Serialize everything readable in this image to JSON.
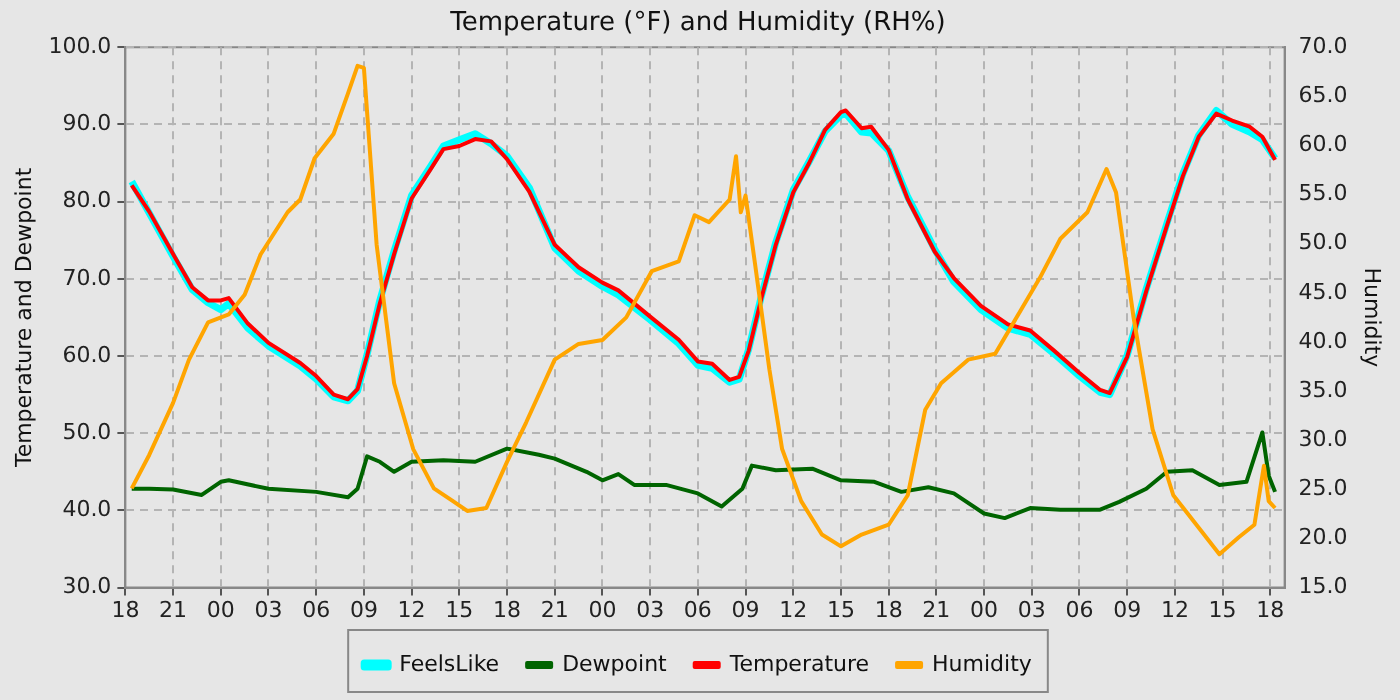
{
  "chart_data": {
    "type": "line",
    "title": "Temperature (°F) and Humidity (RH%)",
    "ylabel": "Temperature and Dewpoint",
    "y2label": "Humidity",
    "xlim": [
      18,
      90.9
    ],
    "xticks": [
      {
        "value": 18,
        "label": "18"
      },
      {
        "value": 21,
        "label": "21"
      },
      {
        "value": 24,
        "label": "00"
      },
      {
        "value": 27,
        "label": "03"
      },
      {
        "value": 30,
        "label": "06"
      },
      {
        "value": 33,
        "label": "09"
      },
      {
        "value": 36,
        "label": "12"
      },
      {
        "value": 39,
        "label": "15"
      },
      {
        "value": 42,
        "label": "18"
      },
      {
        "value": 45,
        "label": "21"
      },
      {
        "value": 48,
        "label": "00"
      },
      {
        "value": 51,
        "label": "03"
      },
      {
        "value": 54,
        "label": "06"
      },
      {
        "value": 57,
        "label": "09"
      },
      {
        "value": 60,
        "label": "12"
      },
      {
        "value": 63,
        "label": "15"
      },
      {
        "value": 66,
        "label": "18"
      },
      {
        "value": 69,
        "label": "21"
      },
      {
        "value": 72,
        "label": "00"
      },
      {
        "value": 75,
        "label": "03"
      },
      {
        "value": 78,
        "label": "06"
      },
      {
        "value": 81,
        "label": "09"
      },
      {
        "value": 84,
        "label": "12"
      },
      {
        "value": 87,
        "label": "15"
      },
      {
        "value": 90,
        "label": "18"
      }
    ],
    "ylim": [
      30,
      100
    ],
    "yticks": [
      {
        "value": 30,
        "label": "30.0"
      },
      {
        "value": 40,
        "label": "40.0"
      },
      {
        "value": 50,
        "label": "50.0"
      },
      {
        "value": 60,
        "label": "60.0"
      },
      {
        "value": 70,
        "label": "70.0"
      },
      {
        "value": 80,
        "label": "80.0"
      },
      {
        "value": 90,
        "label": "90.0"
      },
      {
        "value": 100,
        "label": "100.0"
      }
    ],
    "y2lim": [
      15,
      70
    ],
    "y2ticks": [
      {
        "value": 15,
        "label": "15.0"
      },
      {
        "value": 20,
        "label": "20.0"
      },
      {
        "value": 25,
        "label": "25.0"
      },
      {
        "value": 30,
        "label": "30.0"
      },
      {
        "value": 35,
        "label": "35.0"
      },
      {
        "value": 40,
        "label": "40.0"
      },
      {
        "value": 45,
        "label": "45.0"
      },
      {
        "value": 50,
        "label": "50.0"
      },
      {
        "value": 55,
        "label": "55.0"
      },
      {
        "value": 60,
        "label": "60.0"
      },
      {
        "value": 65,
        "label": "65.0"
      },
      {
        "value": 70,
        "label": "70.0"
      }
    ],
    "grid": true,
    "legend": "bottom",
    "line_style": "solid",
    "marker": "none",
    "series": [
      {
        "name": "FeelsLike",
        "color": "#00ffff",
        "x": [
          18.4,
          19.5,
          21,
          22.2,
          23.2,
          24,
          24.5,
          25.7,
          27,
          29,
          30,
          31.1,
          32,
          32.6,
          33.2,
          34,
          34.9,
          36,
          37.2,
          38,
          39,
          40,
          41,
          42,
          43.4,
          45,
          46.5,
          48,
          49,
          51,
          52.8,
          54,
          54.9,
          56,
          56.6,
          57.2,
          58,
          58.9,
          60,
          61,
          62,
          63,
          63.3,
          64.3,
          64.9,
          66,
          67.2,
          68.9,
          70.1,
          71.8,
          73.5,
          74.9,
          76.4,
          78,
          79.3,
          79.9,
          81,
          82.2,
          83.5,
          84.5,
          85.5,
          86.6,
          87.6,
          88.7,
          89.5,
          90.3
        ],
        "values": [
          82.6,
          78.5,
          72.9,
          68.6,
          66.9,
          66.0,
          66.8,
          63.6,
          61.3,
          58.7,
          57.0,
          54.7,
          54.2,
          55.5,
          60.2,
          67.2,
          73.6,
          80.8,
          84.6,
          87.2,
          88.0,
          88.8,
          87.5,
          85.9,
          81.8,
          74.0,
          71.0,
          69.0,
          67.9,
          64.7,
          61.6,
          58.8,
          58.4,
          56.6,
          57.0,
          60.9,
          67.8,
          74.7,
          81.5,
          85.2,
          89.1,
          91.2,
          91.4,
          89.0,
          88.9,
          86.6,
          80.6,
          73.8,
          69.6,
          66.0,
          63.6,
          62.8,
          60.3,
          57.4,
          55.3,
          55.0,
          60.1,
          68.7,
          77.2,
          83.6,
          88.6,
          91.8,
          90.0,
          89.0,
          88.0,
          85.6
        ]
      },
      {
        "name": "Dewpoint",
        "color": "#006400",
        "x": [
          18.4,
          19.5,
          21,
          22.8,
          24,
          24.5,
          27,
          30,
          32,
          32.6,
          33.2,
          34,
          34.9,
          36,
          38,
          40,
          42,
          44,
          45,
          47,
          48,
          49,
          50,
          52,
          54,
          55.5,
          56.8,
          57.4,
          58.9,
          61.2,
          63,
          65.1,
          66.8,
          68.5,
          70.1,
          72,
          73.3,
          74.9,
          76.8,
          79.3,
          80.5,
          82.2,
          83.5,
          85.1,
          86.8,
          88.5,
          89.5,
          89.9,
          90.3
        ],
        "values": [
          42.8,
          42.8,
          42.7,
          42.0,
          43.7,
          43.9,
          42.8,
          42.4,
          41.7,
          42.8,
          47.0,
          46.3,
          45.0,
          46.3,
          46.5,
          46.3,
          48.0,
          47.2,
          46.7,
          45.0,
          43.9,
          44.7,
          43.3,
          43.3,
          42.2,
          40.5,
          42.8,
          45.8,
          45.2,
          45.4,
          43.9,
          43.7,
          42.4,
          43.0,
          42.2,
          39.6,
          39.0,
          40.3,
          40.1,
          40.1,
          41.1,
          42.8,
          45.0,
          45.2,
          43.3,
          43.7,
          50.1,
          44.5,
          42.4
        ]
      },
      {
        "name": "Temperature",
        "color": "#ff0000",
        "x": [
          18.4,
          19.5,
          21,
          22.2,
          23.2,
          24,
          24.5,
          25.7,
          27,
          29,
          30,
          31.1,
          32,
          32.6,
          33.2,
          34,
          34.9,
          36,
          37.2,
          38,
          39,
          40,
          41,
          42,
          43.4,
          45,
          46.5,
          48,
          49,
          51,
          52.8,
          54,
          54.9,
          56,
          56.6,
          57.2,
          58,
          58.9,
          60,
          61,
          62,
          63,
          63.3,
          64.3,
          64.9,
          66,
          67.2,
          68.9,
          70.1,
          71.8,
          73.5,
          74.9,
          76.4,
          78,
          79.3,
          79.9,
          81,
          82.2,
          83.5,
          84.5,
          85.5,
          86.6,
          87.6,
          88.7,
          89.5,
          90.3
        ],
        "values": [
          82.1,
          78.7,
          73.2,
          68.9,
          67.2,
          67.2,
          67.5,
          64.2,
          61.7,
          59.1,
          57.4,
          55.0,
          54.4,
          55.7,
          60.0,
          66.8,
          73.2,
          80.4,
          84.2,
          86.8,
          87.2,
          88.1,
          87.8,
          85.5,
          81.3,
          74.4,
          71.5,
          69.5,
          68.5,
          65.1,
          62.1,
          59.3,
          59.0,
          56.9,
          57.3,
          60.7,
          67.5,
          74.4,
          81.2,
          85.0,
          89.3,
          91.6,
          91.8,
          89.5,
          89.7,
          86.7,
          80.3,
          73.5,
          70.1,
          66.5,
          64.1,
          63.3,
          60.7,
          57.8,
          55.6,
          55.2,
          59.9,
          68.4,
          76.9,
          83.3,
          88.4,
          91.4,
          90.5,
          89.7,
          88.4,
          85.4
        ]
      },
      {
        "name": "Humidity",
        "color": "#ffa500",
        "axis": "y2",
        "x": [
          18.4,
          19.5,
          21,
          22,
          23.2,
          24.5,
          25.5,
          26.5,
          28.2,
          29,
          29.9,
          31.1,
          32,
          32.6,
          33,
          33.8,
          34.9,
          36.1,
          37.4,
          38.6,
          39.5,
          40.7,
          42,
          43.2,
          45,
          46.5,
          48,
          49.5,
          51.1,
          52.8,
          53.8,
          54.7,
          56,
          56.4,
          56.7,
          57,
          57.6,
          58.5,
          59.3,
          60.5,
          61.8,
          63,
          64.3,
          66,
          67.2,
          68.3,
          69.3,
          71,
          72.7,
          74.3,
          75.5,
          76.8,
          78.5,
          79.7,
          80.3,
          81.4,
          82.6,
          83.9,
          85.5,
          86.8,
          88,
          89,
          89.6,
          89.9,
          90.3
        ],
        "values": [
          25.1,
          28.5,
          33.8,
          38.2,
          42.0,
          42.8,
          44.8,
          48.9,
          53.2,
          54.5,
          58.7,
          61.2,
          65.3,
          68.1,
          67.9,
          49.9,
          35.8,
          29.1,
          25.1,
          23.8,
          22.8,
          23.1,
          27.8,
          31.8,
          38.2,
          39.8,
          40.2,
          42.5,
          47.2,
          48.2,
          52.9,
          52.2,
          54.5,
          58.9,
          53.2,
          54.9,
          47.9,
          37.2,
          29.1,
          23.8,
          20.4,
          19.2,
          20.4,
          21.4,
          24.4,
          33.1,
          35.8,
          38.2,
          38.8,
          43.2,
          46.5,
          50.5,
          53.2,
          57.6,
          55.2,
          42.5,
          31.1,
          24.4,
          21.1,
          18.4,
          20.1,
          21.4,
          27.4,
          23.8,
          23.1
        ]
      }
    ]
  }
}
